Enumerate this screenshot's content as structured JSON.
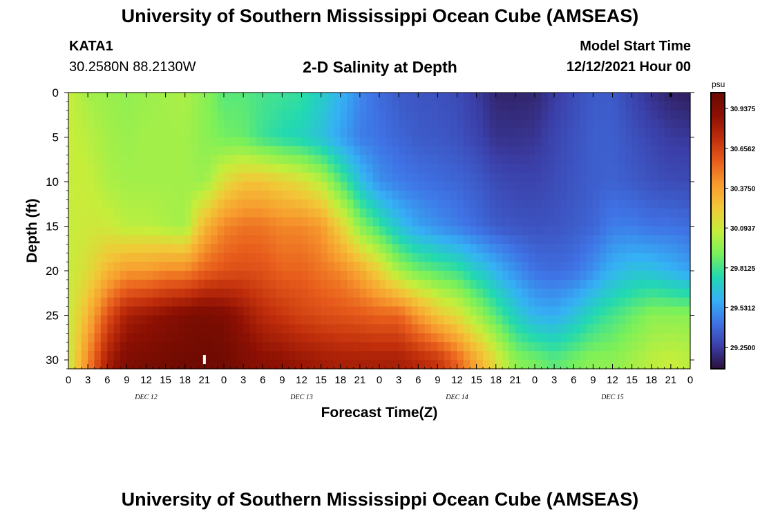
{
  "header": {
    "title": "University of Southern Mississippi Ocean Cube (AMSEAS)",
    "station_id": "KATA1",
    "coordinates": "30.2580N  88.2130W",
    "plot_title": "2-D Salinity at Depth",
    "model_start_label": "Model Start Time",
    "model_start_value": "12/12/2021 Hour 00"
  },
  "footer": {
    "title": "University of Southern Mississippi Ocean Cube (AMSEAS)"
  },
  "chart_data": {
    "type": "heatmap",
    "title": "2-D Salinity at Depth",
    "xlabel": "Forecast Time(Z)",
    "ylabel": "Depth (ft)",
    "x_tick_labels": [
      "0",
      "3",
      "6",
      "9",
      "12",
      "15",
      "18",
      "21",
      "0",
      "3",
      "6",
      "9",
      "12",
      "15",
      "18",
      "21",
      "0",
      "3",
      "6",
      "9",
      "12",
      "15",
      "18",
      "21",
      "0",
      "3",
      "6",
      "9",
      "12",
      "15",
      "18",
      "21",
      "0"
    ],
    "x_day_labels": [
      "DEC 12",
      "DEC 13",
      "DEC 14",
      "DEC 15"
    ],
    "x_range_hours": [
      0,
      96
    ],
    "y_ticks": [
      0,
      5,
      10,
      15,
      20,
      25,
      30
    ],
    "y_range_ft": [
      0,
      31
    ],
    "y_inverted": true,
    "colorbar": {
      "units": "psu",
      "labels": [
        "30.9375",
        "30.6562",
        "30.3750",
        "30.0937",
        "29.8125",
        "29.5312",
        "29.2500"
      ],
      "min": 29.1,
      "max": 31.05,
      "colors": [
        "#2a0f3a",
        "#3b3fa8",
        "#3f74e6",
        "#35b1f5",
        "#22d9b0",
        "#7af05a",
        "#c6ee3b",
        "#f2c838",
        "#f79b2e",
        "#e85d1c",
        "#c02e0b",
        "#8d1003",
        "#6a0a02"
      ]
    },
    "time_hours": [
      0,
      3,
      6,
      9,
      12,
      15,
      18,
      21,
      24,
      27,
      30,
      33,
      36,
      39,
      42,
      45,
      48,
      51,
      54,
      57,
      60,
      63,
      66,
      69,
      72,
      75,
      78,
      81,
      84,
      87,
      90,
      93,
      96
    ],
    "depth_ft": [
      0,
      5,
      10,
      15,
      20,
      25,
      30
    ],
    "values": [
      [
        30.08,
        30.08,
        30.08,
        30.08,
        30.08,
        30.08,
        30.08
      ],
      [
        30.0,
        30.05,
        30.08,
        30.1,
        30.15,
        30.3,
        30.45
      ],
      [
        29.98,
        30.0,
        30.02,
        30.1,
        30.3,
        30.6,
        30.8
      ],
      [
        29.96,
        29.98,
        30.0,
        30.05,
        30.4,
        30.8,
        30.95
      ],
      [
        29.98,
        30.0,
        30.0,
        30.05,
        30.4,
        30.85,
        30.98
      ],
      [
        30.0,
        30.0,
        30.0,
        30.02,
        30.45,
        30.9,
        31.0
      ],
      [
        30.02,
        30.0,
        30.0,
        30.0,
        30.45,
        30.95,
        31.02
      ],
      [
        29.95,
        29.95,
        29.98,
        30.3,
        30.55,
        30.98,
        31.03
      ],
      [
        29.85,
        29.9,
        30.15,
        30.45,
        30.6,
        30.95,
        31.02
      ],
      [
        29.85,
        29.88,
        30.25,
        30.5,
        30.62,
        30.85,
        30.95
      ],
      [
        29.82,
        29.8,
        30.25,
        30.5,
        30.6,
        30.75,
        30.9
      ],
      [
        29.8,
        29.75,
        30.2,
        30.45,
        30.55,
        30.7,
        30.88
      ],
      [
        29.78,
        29.72,
        30.15,
        30.45,
        30.55,
        30.65,
        30.85
      ],
      [
        29.7,
        29.65,
        30.05,
        30.4,
        30.5,
        30.62,
        30.82
      ],
      [
        29.6,
        29.55,
        29.85,
        30.2,
        30.45,
        30.6,
        30.8
      ],
      [
        29.48,
        29.45,
        29.65,
        29.95,
        30.35,
        30.58,
        30.8
      ],
      [
        29.4,
        29.42,
        29.5,
        29.8,
        30.2,
        30.55,
        30.8
      ],
      [
        29.35,
        29.38,
        29.45,
        29.65,
        30.0,
        30.55,
        30.8
      ],
      [
        29.33,
        29.35,
        29.42,
        29.55,
        29.9,
        30.4,
        30.75
      ],
      [
        29.32,
        29.34,
        29.4,
        29.5,
        29.85,
        30.25,
        30.7
      ],
      [
        29.3,
        29.32,
        29.38,
        29.45,
        29.8,
        30.15,
        30.55
      ],
      [
        29.25,
        29.28,
        29.35,
        29.4,
        29.7,
        30.0,
        30.35
      ],
      [
        29.18,
        29.22,
        29.3,
        29.35,
        29.6,
        29.85,
        30.15
      ],
      [
        29.17,
        29.22,
        29.28,
        29.33,
        29.5,
        29.7,
        29.95
      ],
      [
        29.18,
        29.23,
        29.28,
        29.32,
        29.42,
        29.6,
        29.9
      ],
      [
        29.25,
        29.28,
        29.3,
        29.33,
        29.4,
        29.58,
        29.85
      ],
      [
        29.3,
        29.32,
        29.33,
        29.35,
        29.42,
        29.65,
        29.9
      ],
      [
        29.35,
        29.36,
        29.36,
        29.38,
        29.5,
        29.75,
        29.95
      ],
      [
        29.35,
        29.36,
        29.37,
        29.45,
        29.6,
        29.82,
        29.95
      ],
      [
        29.28,
        29.32,
        29.35,
        29.45,
        29.65,
        29.88,
        30.0
      ],
      [
        29.22,
        29.28,
        29.32,
        29.42,
        29.65,
        29.95,
        30.05
      ],
      [
        29.17,
        29.25,
        29.3,
        29.42,
        29.6,
        29.95,
        30.08
      ],
      [
        29.15,
        29.24,
        29.3,
        29.4,
        29.55,
        29.95,
        30.05
      ]
    ]
  }
}
